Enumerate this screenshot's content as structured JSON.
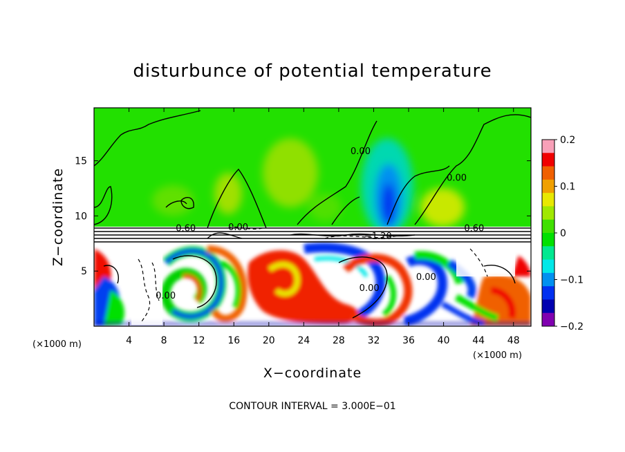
{
  "chart_data": {
    "type": "heatmap",
    "title": "disturbunce of potential temperature",
    "xlabel": "X−coordinate",
    "ylabel": "Z−coordinate",
    "x_unit": "(×1000 m)",
    "y_unit": "(×1000 m)",
    "xlim": [
      0,
      50
    ],
    "ylim": [
      0,
      19.8
    ],
    "x_ticks": [
      4,
      8,
      12,
      16,
      20,
      24,
      28,
      32,
      36,
      40,
      44,
      48
    ],
    "y_ticks": [
      5,
      10,
      15
    ],
    "colorbar": {
      "range": [
        -0.2,
        0.2
      ],
      "tick_values": [
        0.2,
        0.1,
        0,
        -0.1,
        -0.2
      ],
      "tick_labels": [
        "0.2",
        "0.1",
        "0",
        "−0.1",
        "−0.2"
      ],
      "colors": [
        "#f8a0b8",
        "#f00000",
        "#f06000",
        "#f0a000",
        "#e8e800",
        "#a0e800",
        "#40e000",
        "#00e000",
        "#00e890",
        "#00e8e8",
        "#0090f0",
        "#0030f0",
        "#0000b0",
        "#8000b0"
      ]
    },
    "contour_labels": [
      {
        "text": "0.00",
        "x": 30.5,
        "y": 15.6
      },
      {
        "text": "0.00",
        "x": 41.5,
        "y": 13.2
      },
      {
        "text": "0.60",
        "x": 10.5,
        "y": 8.6
      },
      {
        "text": "0.00",
        "x": 16.5,
        "y": 8.7
      },
      {
        "text": "−1.20",
        "x": 32.5,
        "y": 7.9
      },
      {
        "text": "0.60",
        "x": 43.5,
        "y": 8.6
      },
      {
        "text": "0.00",
        "x": 8.2,
        "y": 2.5
      },
      {
        "text": "0.00",
        "x": 31.5,
        "y": 3.2
      },
      {
        "text": "0.00",
        "x": 38.0,
        "y": 4.2
      }
    ],
    "contour_interval": "CONTOUR INTERVAL = 3.000E−01",
    "grid": false
  }
}
